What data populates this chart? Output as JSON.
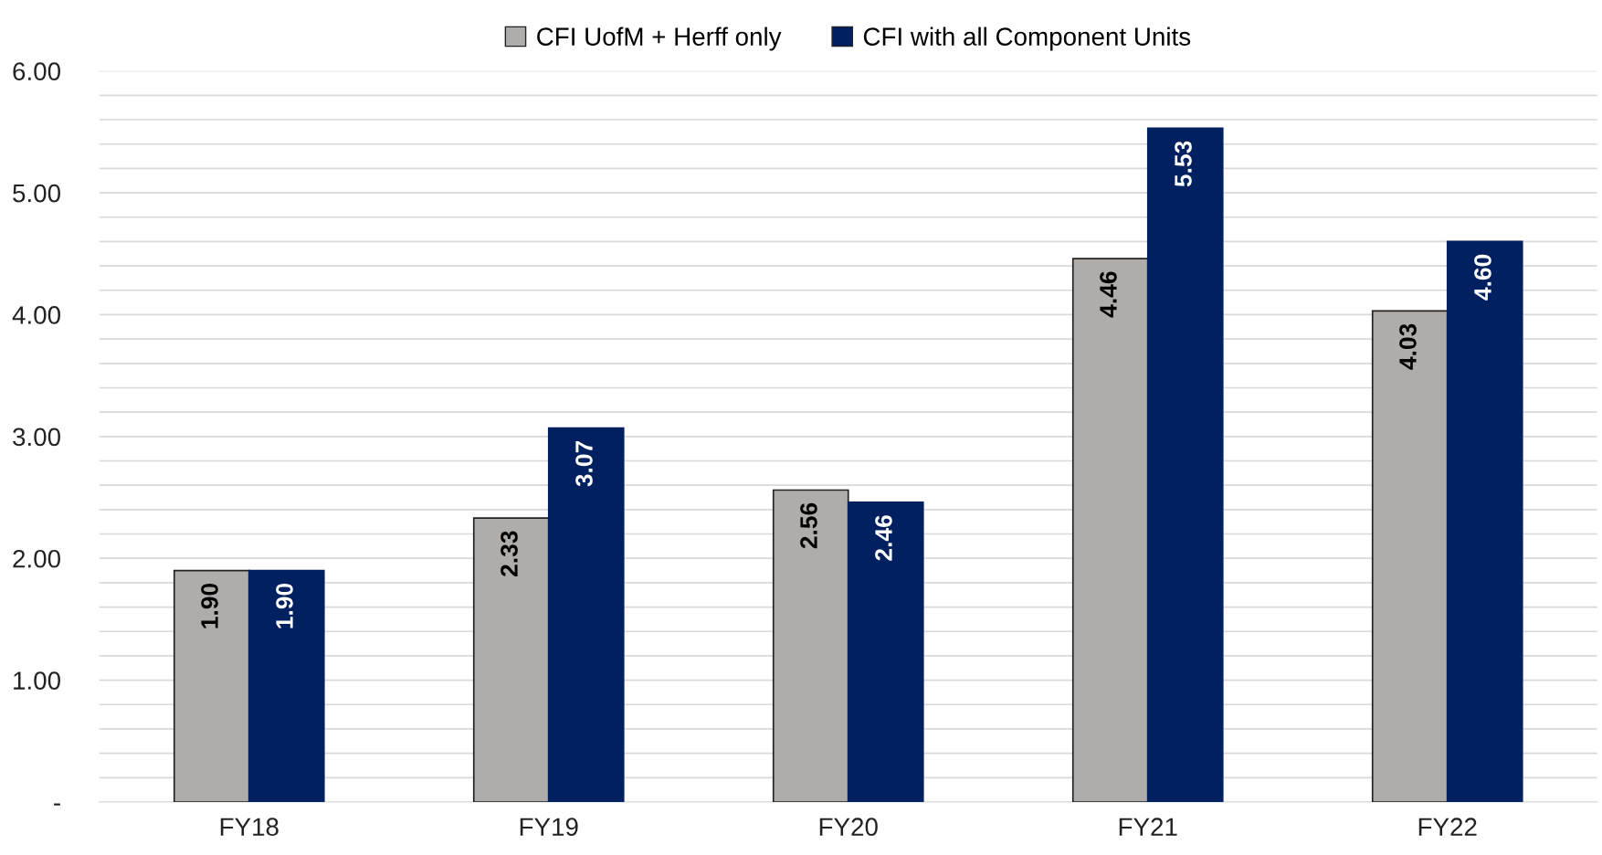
{
  "chart_data": {
    "type": "bar",
    "categories": [
      "FY18",
      "FY19",
      "FY20",
      "FY21",
      "FY22"
    ],
    "series": [
      {
        "name": "CFI UofM + Herff only",
        "color": "#b0acaa",
        "values": [
          1.9,
          2.33,
          2.56,
          4.46,
          4.03
        ],
        "value_labels": [
          "1.90",
          "2.33",
          "2.56",
          "4.46",
          "4.03"
        ]
      },
      {
        "name": "CFI with all Component Units",
        "color": "#002060",
        "values": [
          1.9,
          3.07,
          2.46,
          5.53,
          4.6
        ],
        "value_labels": [
          "1.90",
          "3.07",
          "2.46",
          "5.53",
          "4.60"
        ]
      }
    ],
    "ylim": [
      0,
      6
    ],
    "yticks": [
      {
        "value": 0,
        "label": "-"
      },
      {
        "value": 0.2,
        "label": null
      },
      {
        "value": 0.4,
        "label": null
      },
      {
        "value": 0.6,
        "label": null
      },
      {
        "value": 0.8,
        "label": null
      },
      {
        "value": 1,
        "label": "1.00"
      },
      {
        "value": 1.2,
        "label": null
      },
      {
        "value": 1.4,
        "label": null
      },
      {
        "value": 1.6,
        "label": null
      },
      {
        "value": 1.8,
        "label": null
      },
      {
        "value": 2,
        "label": "2.00"
      },
      {
        "value": 2.2,
        "label": null
      },
      {
        "value": 2.4,
        "label": null
      },
      {
        "value": 2.6,
        "label": null
      },
      {
        "value": 2.8,
        "label": null
      },
      {
        "value": 3,
        "label": "3.00"
      },
      {
        "value": 3.2,
        "label": null
      },
      {
        "value": 3.4,
        "label": null
      },
      {
        "value": 3.6,
        "label": null
      },
      {
        "value": 3.8,
        "label": null
      },
      {
        "value": 4,
        "label": "4.00"
      },
      {
        "value": 4.2,
        "label": null
      },
      {
        "value": 4.4,
        "label": null
      },
      {
        "value": 4.6,
        "label": null
      },
      {
        "value": 4.8,
        "label": null
      },
      {
        "value": 5,
        "label": "5.00"
      },
      {
        "value": 5.2,
        "label": null
      },
      {
        "value": 5.4,
        "label": null
      },
      {
        "value": 5.6,
        "label": null
      },
      {
        "value": 5.8,
        "label": null
      },
      {
        "value": 6,
        "label": "6.00"
      }
    ],
    "grid": "y",
    "legend": "top"
  }
}
